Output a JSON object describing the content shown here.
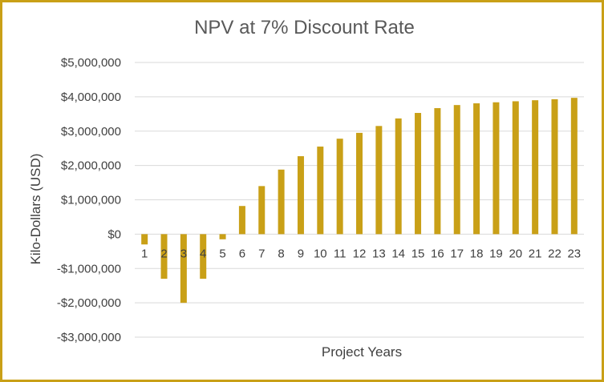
{
  "chart_data": {
    "type": "bar",
    "title": "NPV at 7% Discount Rate",
    "xlabel": "Project Years",
    "ylabel": "Kilo-Dollars (USD)",
    "ylim": [
      -3000000,
      5000000
    ],
    "y_ticks": [
      5000000,
      4000000,
      3000000,
      2000000,
      1000000,
      0,
      -1000000,
      -2000000,
      -3000000
    ],
    "y_tick_labels": [
      "$5,000,000",
      "$4,000,000",
      "$3,000,000",
      "$2,000,000",
      "$1,000,000",
      "$0",
      "-$1,000,000",
      "-$2,000,000",
      "-$3,000,000"
    ],
    "grid": true,
    "categories": [
      "1",
      "2",
      "3",
      "4",
      "5",
      "6",
      "7",
      "8",
      "9",
      "10",
      "11",
      "12",
      "13",
      "14",
      "15",
      "16",
      "17",
      "18",
      "19",
      "20",
      "21",
      "22",
      "23"
    ],
    "values": [
      -300000,
      -1300000,
      -2000000,
      -1300000,
      -150000,
      820000,
      1400000,
      1880000,
      2270000,
      2550000,
      2780000,
      2950000,
      3150000,
      3370000,
      3530000,
      3670000,
      3760000,
      3810000,
      3840000,
      3870000,
      3900000,
      3930000,
      3970000
    ],
    "bar_color": "#c9a017",
    "grid_color": "#d9d9d9",
    "frame_color": "#c9a017"
  }
}
